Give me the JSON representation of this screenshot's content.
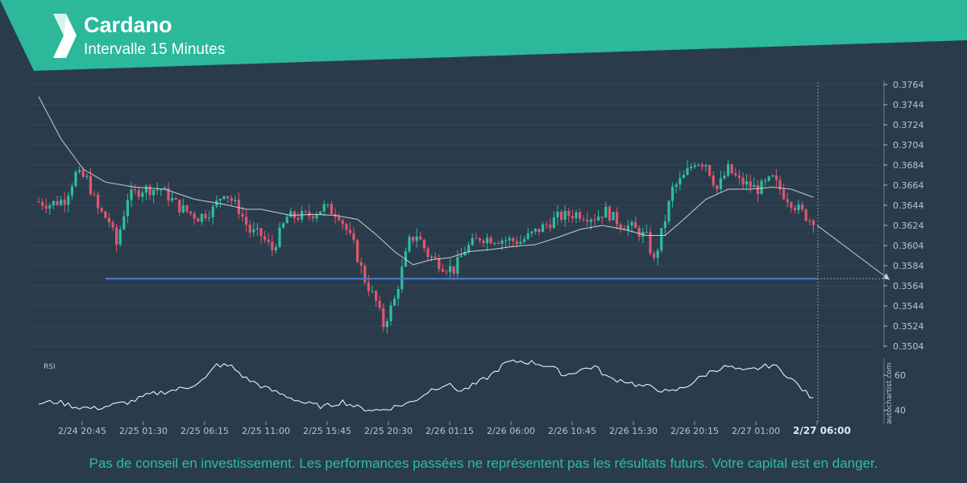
{
  "header": {
    "title": "Cardano",
    "subtitle": "Intervalle 15 Minutes",
    "brand_color": "#2bb89b",
    "logo": "autochartist-chevron-logo"
  },
  "disclaimer": "Pas de conseil en investissement. Les performances passées ne représentent pas les résultats futurs. Votre capital est en danger.",
  "watermark": "autochartist.com",
  "colors": {
    "background": "#2a3c4b",
    "bull_candle": "#2bbf9f",
    "bear_candle": "#e0566e",
    "moving_average": "#c8ced3",
    "support_line": "#4a7fd4",
    "rsi_line": "#ffffff",
    "forecast_line": "#c8ced3"
  },
  "chart_data": {
    "type": "candlestick",
    "title": "Cardano",
    "subtitle": "Intervalle 15 Minutes",
    "y_axis": {
      "ylim": [
        0.3494,
        0.3772
      ],
      "ticks": [
        "0.3764",
        "0.3744",
        "0.3724",
        "0.3704",
        "0.3684",
        "0.3664",
        "0.3644",
        "0.3624",
        "0.3604",
        "0.3584",
        "0.3564",
        "0.3544",
        "0.3524",
        "0.3504"
      ],
      "position": "right"
    },
    "x_axis": {
      "ticks": [
        "2/24 20:45",
        "2/25 01:30",
        "2/25 06:15",
        "2/25 11:00",
        "2/25 15:45",
        "2/25 20:30",
        "2/26 01:15",
        "2/26 06:00",
        "2/26 10:45",
        "2/26 15:30",
        "2/26 20:15",
        "2/27 01:00",
        "2/27 06:00"
      ],
      "highlight_last": true
    },
    "support_level": 0.3571,
    "forecast": {
      "from": 0.3624,
      "to": 0.357
    },
    "price_anchors": [
      [
        0,
        0.3648
      ],
      [
        4,
        0.3645
      ],
      [
        8,
        0.365
      ],
      [
        11,
        0.3675
      ],
      [
        14,
        0.367
      ],
      [
        17,
        0.364
      ],
      [
        20,
        0.3628
      ],
      [
        22,
        0.3605
      ],
      [
        25,
        0.3652
      ],
      [
        29,
        0.366
      ],
      [
        34,
        0.366
      ],
      [
        39,
        0.3642
      ],
      [
        44,
        0.3632
      ],
      [
        48,
        0.364
      ],
      [
        51,
        0.3658
      ],
      [
        55,
        0.364
      ],
      [
        58,
        0.3618
      ],
      [
        61,
        0.3614
      ],
      [
        64,
        0.36
      ],
      [
        68,
        0.3632
      ],
      [
        74,
        0.3634
      ],
      [
        78,
        0.3642
      ],
      [
        82,
        0.3635
      ],
      [
        86,
        0.3604
      ],
      [
        89,
        0.357
      ],
      [
        92,
        0.3548
      ],
      [
        94,
        0.3525
      ],
      [
        97,
        0.355
      ],
      [
        99,
        0.358
      ],
      [
        101,
        0.3608
      ],
      [
        103,
        0.3615
      ],
      [
        106,
        0.3595
      ],
      [
        110,
        0.3584
      ],
      [
        113,
        0.358
      ],
      [
        116,
        0.36
      ],
      [
        120,
        0.3612
      ],
      [
        126,
        0.361
      ],
      [
        131,
        0.3608
      ],
      [
        136,
        0.362
      ],
      [
        141,
        0.3632
      ],
      [
        146,
        0.3636
      ],
      [
        151,
        0.3632
      ],
      [
        154,
        0.3638
      ],
      [
        158,
        0.3625
      ],
      [
        161,
        0.3622
      ],
      [
        165,
        0.3612
      ],
      [
        167,
        0.3588
      ],
      [
        170,
        0.363
      ],
      [
        172,
        0.366
      ],
      [
        175,
        0.3672
      ],
      [
        178,
        0.3688
      ],
      [
        181,
        0.3686
      ],
      [
        184,
        0.366
      ],
      [
        187,
        0.368
      ],
      [
        190,
        0.3668
      ],
      [
        195,
        0.366
      ],
      [
        199,
        0.367
      ],
      [
        202,
        0.3655
      ],
      [
        206,
        0.364
      ],
      [
        209,
        0.363
      ]
    ],
    "ma_anchors": [
      [
        0,
        0.3752
      ],
      [
        6,
        0.371
      ],
      [
        12,
        0.368
      ],
      [
        18,
        0.3667
      ],
      [
        26,
        0.3662
      ],
      [
        34,
        0.366
      ],
      [
        42,
        0.365
      ],
      [
        50,
        0.3645
      ],
      [
        56,
        0.364
      ],
      [
        60,
        0.364
      ],
      [
        68,
        0.3634
      ],
      [
        74,
        0.3635
      ],
      [
        80,
        0.3634
      ],
      [
        86,
        0.363
      ],
      [
        91,
        0.3615
      ],
      [
        96,
        0.3598
      ],
      [
        101,
        0.3585
      ],
      [
        106,
        0.359
      ],
      [
        111,
        0.3592
      ],
      [
        116,
        0.3598
      ],
      [
        122,
        0.36
      ],
      [
        128,
        0.3603
      ],
      [
        134,
        0.3605
      ],
      [
        140,
        0.3612
      ],
      [
        146,
        0.362
      ],
      [
        152,
        0.3624
      ],
      [
        158,
        0.362
      ],
      [
        164,
        0.3614
      ],
      [
        169,
        0.3614
      ],
      [
        174,
        0.363
      ],
      [
        180,
        0.365
      ],
      [
        186,
        0.366
      ],
      [
        192,
        0.366
      ],
      [
        198,
        0.3662
      ],
      [
        203,
        0.366
      ],
      [
        209,
        0.3652
      ]
    ],
    "rsi": {
      "label": "RSI",
      "ticks": [
        40,
        60
      ],
      "range": [
        33,
        72
      ],
      "anchors": [
        [
          0,
          44
        ],
        [
          5,
          45
        ],
        [
          10,
          42
        ],
        [
          15,
          41
        ],
        [
          20,
          43
        ],
        [
          25,
          45
        ],
        [
          30,
          49
        ],
        [
          35,
          51
        ],
        [
          40,
          53
        ],
        [
          45,
          58
        ],
        [
          48,
          66
        ],
        [
          52,
          65
        ],
        [
          56,
          58
        ],
        [
          62,
          52
        ],
        [
          67,
          48
        ],
        [
          72,
          44
        ],
        [
          77,
          42
        ],
        [
          82,
          45
        ],
        [
          87,
          41
        ],
        [
          92,
          40
        ],
        [
          96,
          42
        ],
        [
          101,
          45
        ],
        [
          106,
          52
        ],
        [
          110,
          55
        ],
        [
          114,
          51
        ],
        [
          118,
          55
        ],
        [
          122,
          60
        ],
        [
          126,
          67
        ],
        [
          130,
          68
        ],
        [
          134,
          67
        ],
        [
          138,
          65
        ],
        [
          142,
          60
        ],
        [
          146,
          63
        ],
        [
          150,
          65
        ],
        [
          154,
          58
        ],
        [
          158,
          57
        ],
        [
          162,
          54
        ],
        [
          166,
          53
        ],
        [
          170,
          50
        ],
        [
          174,
          53
        ],
        [
          178,
          58
        ],
        [
          182,
          63
        ],
        [
          186,
          65
        ],
        [
          190,
          62
        ],
        [
          194,
          64
        ],
        [
          198,
          66
        ],
        [
          202,
          60
        ],
        [
          206,
          52
        ],
        [
          209,
          46
        ]
      ]
    }
  }
}
